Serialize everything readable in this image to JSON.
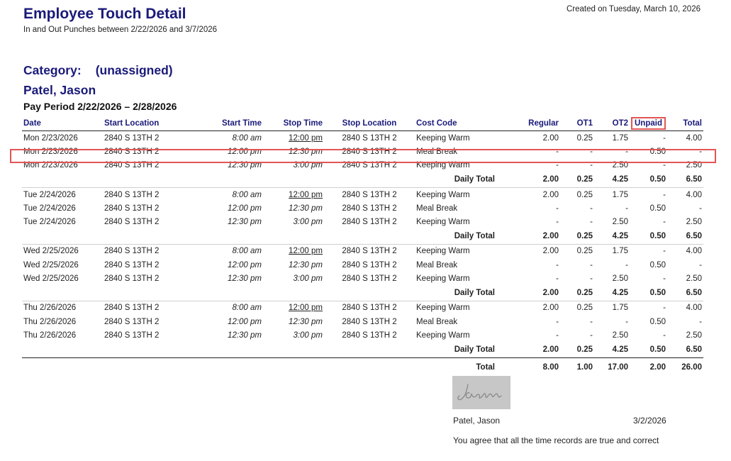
{
  "report": {
    "title": "Employee Touch Detail",
    "subtitle": "In and Out Punches between 2/22/2026 and 3/7/2026",
    "created": "Created on Tuesday, March 10, 2026"
  },
  "category": {
    "label": "Category:",
    "value": "(unassigned)"
  },
  "employee": {
    "name": "Patel, Jason"
  },
  "pay_period": "Pay Period 2/22/2026 – 2/28/2026",
  "columns": [
    "Date",
    "Start Location",
    "Start Time",
    "Stop Time",
    "Stop Location",
    "Cost Code",
    "Regular",
    "OT1",
    "OT2",
    "Unpaid",
    "Total"
  ],
  "days": [
    {
      "rows": [
        [
          "Mon  2/23/2026",
          "2840 S 13TH 2",
          "8:00 am",
          "12:00 pm",
          "2840 S 13TH 2",
          "Keeping Warm",
          "2.00",
          "0.25",
          "1.75",
          "-",
          "4.00"
        ],
        [
          "Mon  2/23/2026",
          "2840 S 13TH 2",
          "12:00 pm",
          "12:30 pm",
          "2840 S 13TH 2",
          "Meal Break",
          "-",
          "-",
          "-",
          "0.50",
          "-"
        ],
        [
          "Mon  2/23/2026",
          "2840 S 13TH 2",
          "12:30 pm",
          "3:00 pm",
          "2840 S 13TH 2",
          "Keeping Warm",
          "-",
          "-",
          "2.50",
          "-",
          "2.50"
        ]
      ],
      "total": [
        "Daily Total",
        "2.00",
        "0.25",
        "4.25",
        "0.50",
        "6.50"
      ]
    },
    {
      "rows": [
        [
          "Tue    2/24/2026",
          "2840 S 13TH 2",
          "8:00 am",
          "12:00 pm",
          "2840 S 13TH 2",
          "Keeping Warm",
          "2.00",
          "0.25",
          "1.75",
          "-",
          "4.00"
        ],
        [
          "Tue    2/24/2026",
          "2840 S 13TH 2",
          "12:00 pm",
          "12:30 pm",
          "2840 S 13TH 2",
          "Meal Break",
          "-",
          "-",
          "-",
          "0.50",
          "-"
        ],
        [
          "Tue    2/24/2026",
          "2840 S 13TH 2",
          "12:30 pm",
          "3:00 pm",
          "2840 S 13TH 2",
          "Keeping Warm",
          "-",
          "-",
          "2.50",
          "-",
          "2.50"
        ]
      ],
      "total": [
        "Daily Total",
        "2.00",
        "0.25",
        "4.25",
        "0.50",
        "6.50"
      ]
    },
    {
      "rows": [
        [
          "Wed  2/25/2026",
          "2840 S 13TH 2",
          "8:00 am",
          "12:00 pm",
          "2840 S 13TH 2",
          "Keeping Warm",
          "2.00",
          "0.25",
          "1.75",
          "-",
          "4.00"
        ],
        [
          "Wed  2/25/2026",
          "2840 S 13TH 2",
          "12:00 pm",
          "12:30 pm",
          "2840 S 13TH 2",
          "Meal Break",
          "-",
          "-",
          "-",
          "0.50",
          "-"
        ],
        [
          "Wed  2/25/2026",
          "2840 S 13TH 2",
          "12:30 pm",
          "3:00 pm",
          "2840 S 13TH 2",
          "Keeping Warm",
          "-",
          "-",
          "2.50",
          "-",
          "2.50"
        ]
      ],
      "total": [
        "Daily Total",
        "2.00",
        "0.25",
        "4.25",
        "0.50",
        "6.50"
      ]
    },
    {
      "rows": [
        [
          "Thu    2/26/2026",
          "2840 S 13TH 2",
          "8:00 am",
          "12:00 pm",
          "2840 S 13TH 2",
          "Keeping Warm",
          "2.00",
          "0.25",
          "1.75",
          "-",
          "4.00"
        ],
        [
          "Thu    2/26/2026",
          "2840 S 13TH 2",
          "12:00 pm",
          "12:30 pm",
          "2840 S 13TH 2",
          "Meal Break",
          "-",
          "-",
          "-",
          "0.50",
          "-"
        ],
        [
          "Thu    2/26/2026",
          "2840 S 13TH 2",
          "12:30 pm",
          "3:00 pm",
          "2840 S 13TH 2",
          "Keeping Warm",
          "-",
          "-",
          "2.50",
          "-",
          "2.50"
        ]
      ],
      "total": [
        "Daily Total",
        "2.00",
        "0.25",
        "4.25",
        "0.50",
        "6.50"
      ]
    }
  ],
  "grand_total": [
    "Total",
    "8.00",
    "1.00",
    "17.00",
    "2.00",
    "26.00"
  ],
  "signature": {
    "handwriting": "Jason",
    "name": "Patel, Jason",
    "date": "3/2/2026",
    "agreement": "You agree that all the time records are true and correct"
  },
  "colors": {
    "heading": "#1a1a7a",
    "highlight": "#e25555",
    "signature_bg": "#c7c7c7"
  }
}
